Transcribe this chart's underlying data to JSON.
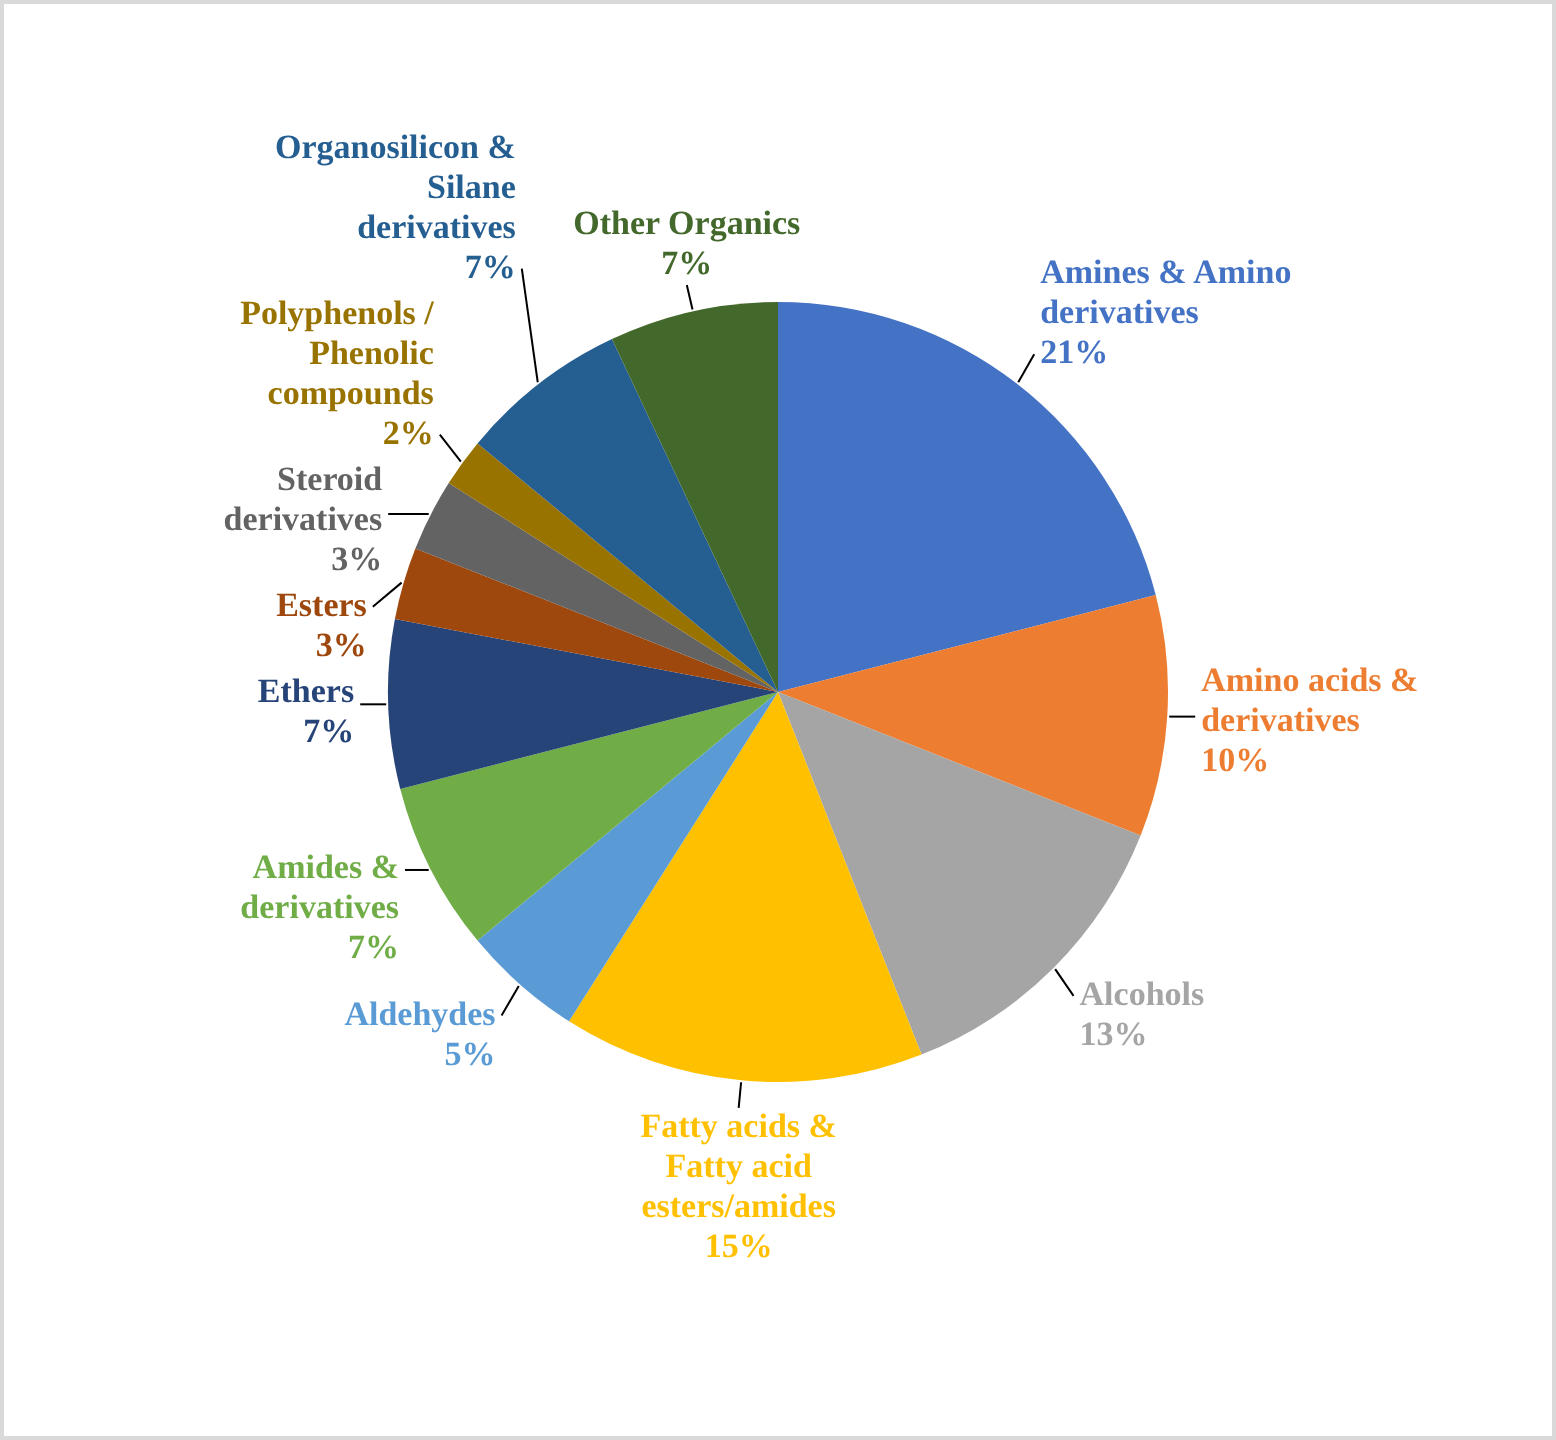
{
  "chart_data": {
    "type": "pie",
    "categories": [
      "Amines & Amino derivatives",
      "Amino acids & derivatives",
      "Alcohols",
      "Fatty acids & Fatty acid esters/amides",
      "Aldehydes",
      "Amides & derivatives",
      "Ethers",
      "Esters",
      "Steroid derivatives",
      "Polyphenols / Phenolic compounds",
      "Organosilicon & Silane derivatives",
      "Other Organics"
    ],
    "values": [
      21,
      10,
      13,
      15,
      5,
      7,
      7,
      3,
      3,
      2,
      7,
      7
    ],
    "colors": [
      "#4472c4",
      "#ed7d31",
      "#a5a5a5",
      "#ffc000",
      "#5b9bd5",
      "#70ad47",
      "#264478",
      "#9e480e",
      "#636363",
      "#997300",
      "#255e91",
      "#43682b"
    ],
    "value_labels": [
      "21%",
      "10%",
      "13%",
      "15%",
      "5%",
      "7%",
      "7%",
      "3%",
      "3%",
      "2%",
      "7%",
      "7%"
    ]
  }
}
